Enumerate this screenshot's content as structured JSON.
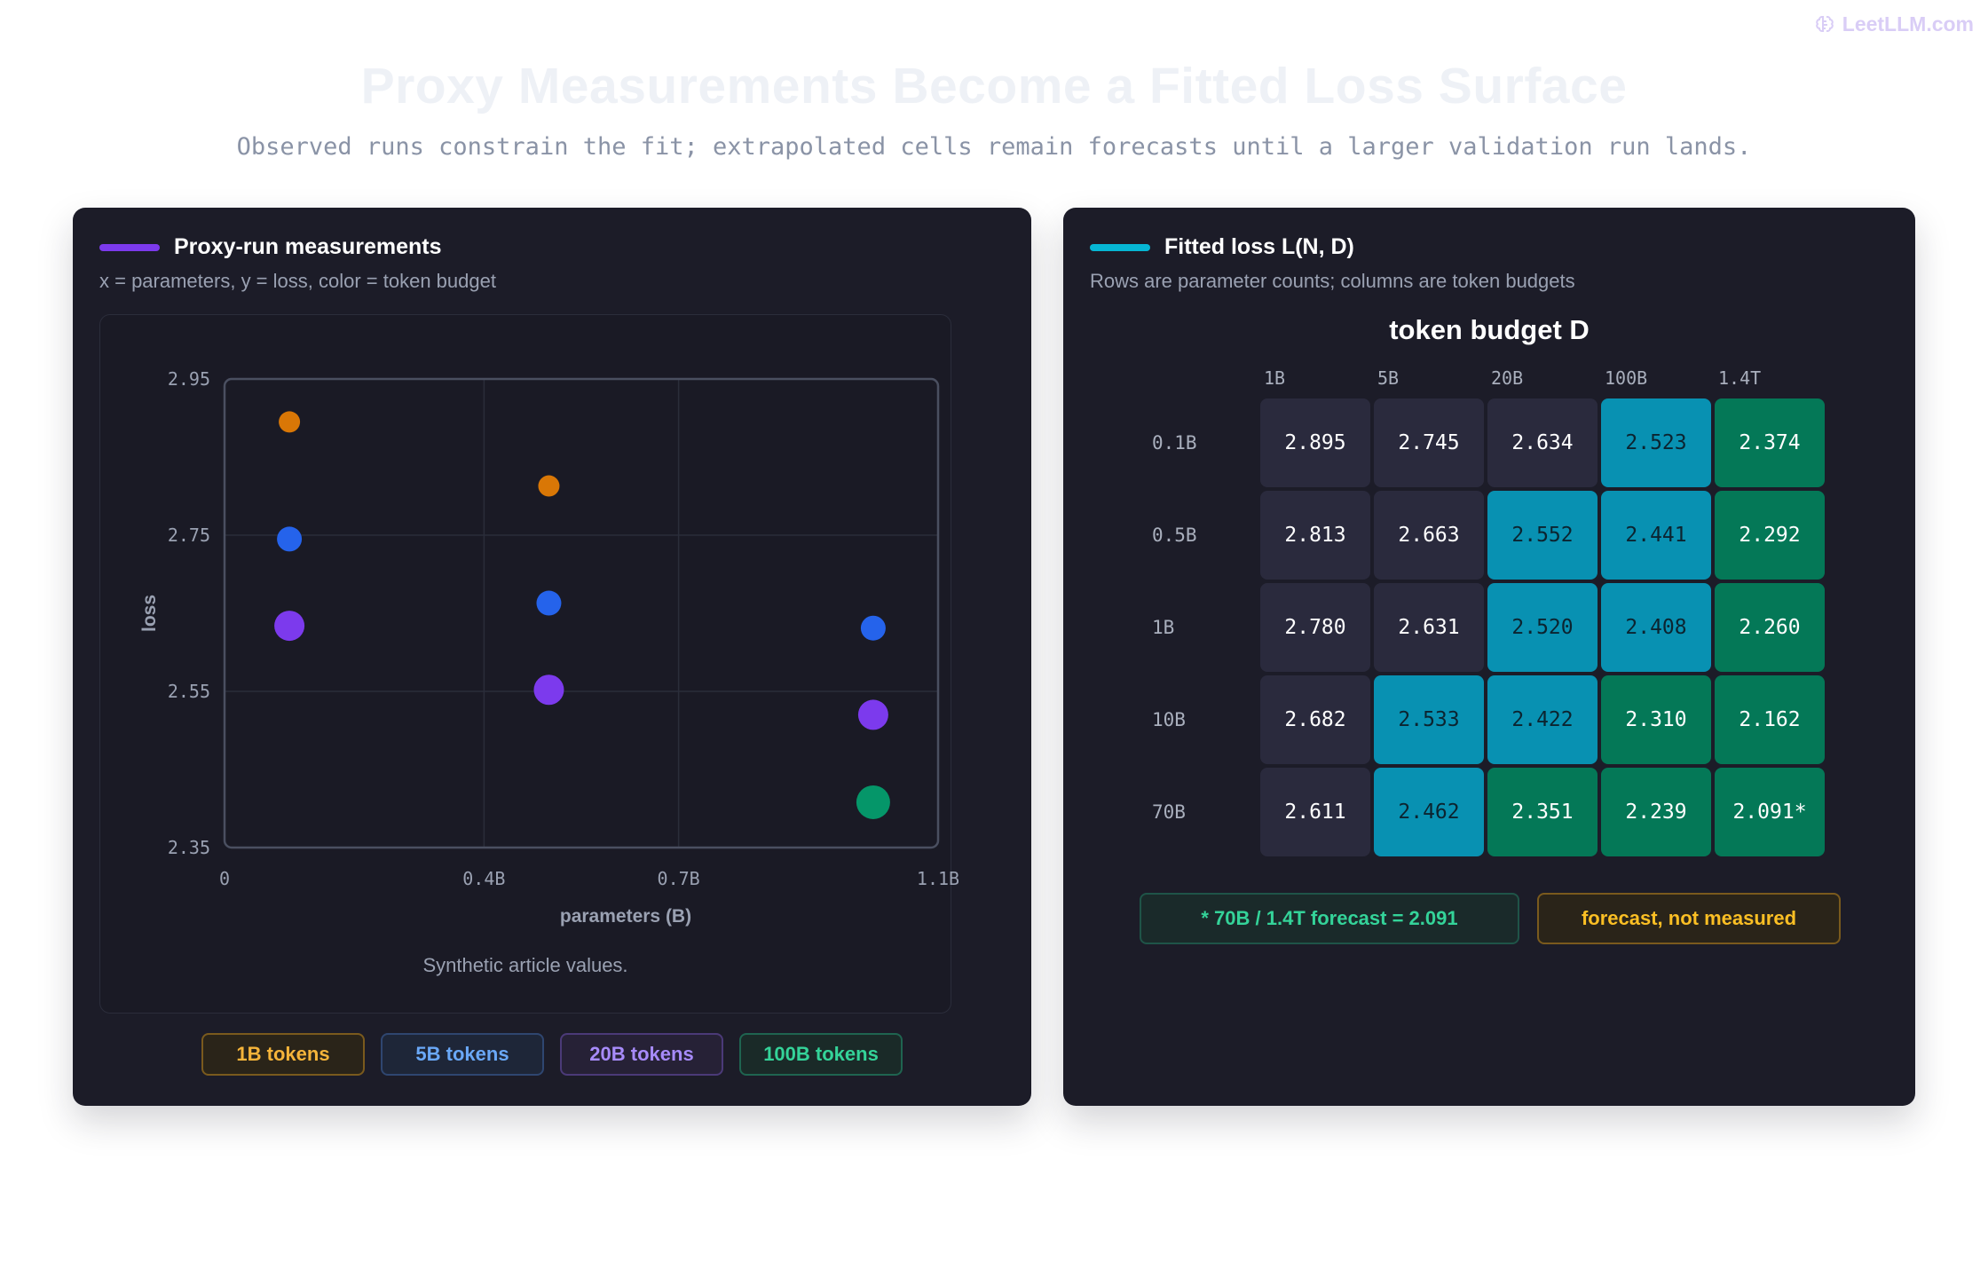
{
  "brand": {
    "label": "LeetLLM.com",
    "icon": "brain-icon"
  },
  "header": {
    "title": "Proxy Measurements Become a Fitted Loss Surface",
    "subtitle": "Observed runs constrain the fit; extrapolated cells remain forecasts until a larger validation run lands."
  },
  "left_panel": {
    "title": "Proxy-run measurements",
    "subtitle": "x = parameters, y = loss, color = token budget",
    "caption": "Synthetic article values.",
    "accent": "#7c3aed",
    "legend": [
      {
        "label": "1B tokens",
        "color": "#d97706",
        "text": "#f5b43a",
        "bg": "#2a2419",
        "border": "#7a5a1d"
      },
      {
        "label": "5B tokens",
        "color": "#2563eb",
        "text": "#6aa8f7",
        "bg": "#1e2638",
        "border": "#2f4670"
      },
      {
        "label": "20B tokens",
        "color": "#7c3aed",
        "text": "#a78bfa",
        "bg": "#262136",
        "border": "#4b3a78"
      },
      {
        "label": "100B tokens",
        "color": "#059669",
        "text": "#34d399",
        "bg": "#1a2a28",
        "border": "#1f6450"
      }
    ]
  },
  "chart_data": [
    {
      "type": "scatter",
      "title": "Proxy-run measurements",
      "xlabel": "parameters (B)",
      "ylabel": "loss",
      "xlim": [
        0,
        1.1
      ],
      "ylim": [
        2.35,
        2.95
      ],
      "xticks": [
        0,
        0.4,
        0.7,
        1.1
      ],
      "xtick_labels": [
        "0",
        "0.4B",
        "0.7B",
        "1.1B"
      ],
      "yticks": [
        2.95,
        2.75,
        2.55,
        2.35
      ],
      "ytick_labels": [
        "2.95",
        "2.75",
        "2.55",
        "2.35"
      ],
      "grid": true,
      "series": [
        {
          "name": "1B tokens",
          "color": "#d97706",
          "points": [
            {
              "x": 0.1,
              "y": 2.895
            },
            {
              "x": 0.5,
              "y": 2.813
            }
          ]
        },
        {
          "name": "5B tokens",
          "color": "#2563eb",
          "points": [
            {
              "x": 0.1,
              "y": 2.745
            },
            {
              "x": 0.5,
              "y": 2.663
            },
            {
              "x": 1.0,
              "y": 2.631
            }
          ]
        },
        {
          "name": "20B tokens",
          "color": "#7c3aed",
          "points": [
            {
              "x": 0.1,
              "y": 2.634
            },
            {
              "x": 0.5,
              "y": 2.552
            },
            {
              "x": 1.0,
              "y": 2.52
            }
          ]
        },
        {
          "name": "100B tokens",
          "color": "#059669",
          "points": [
            {
              "x": 1.0,
              "y": 2.408
            }
          ]
        }
      ]
    },
    {
      "type": "heatmap",
      "title": "Fitted loss L(N, D)",
      "subtitle": "Rows are parameter counts; columns are token budgets",
      "col_axis_title": "token budget D",
      "columns": [
        "1B",
        "5B",
        "20B",
        "100B",
        "1.4T"
      ],
      "rows": [
        "0.1B",
        "0.5B",
        "1B",
        "10B",
        "70B"
      ],
      "values": [
        [
          2.895,
          2.745,
          2.634,
          2.523,
          2.374
        ],
        [
          2.813,
          2.663,
          2.552,
          2.441,
          2.292
        ],
        [
          2.78,
          2.631,
          2.52,
          2.408,
          2.26
        ],
        [
          2.682,
          2.533,
          2.422,
          2.31,
          2.162
        ],
        [
          2.611,
          2.462,
          2.351,
          2.239,
          2.091
        ]
      ],
      "cell_labels": [
        [
          "2.895",
          "2.745",
          "2.634",
          "2.523",
          "2.374"
        ],
        [
          "2.813",
          "2.663",
          "2.552",
          "2.441",
          "2.292"
        ],
        [
          "2.780",
          "2.631",
          "2.520",
          "2.408",
          "2.260"
        ],
        [
          "2.682",
          "2.533",
          "2.422",
          "2.310",
          "2.162"
        ],
        [
          "2.611",
          "2.462",
          "2.351",
          "2.239",
          "2.091*"
        ]
      ],
      "color_bands": [
        {
          "min": 2.6,
          "color": "#2a2a3d",
          "text": "#ffffff"
        },
        {
          "min": 2.4,
          "color": "#0891b2",
          "text": "#0c2430"
        },
        {
          "min": 0,
          "color": "#047857",
          "text": "#ffffff"
        }
      ]
    }
  ],
  "right_panel": {
    "title": "Fitted loss L(N, D)",
    "subtitle": "Rows are parameter counts; columns are token budgets",
    "heat_title": "token budget D",
    "accent": "#06b6d4",
    "notes": [
      {
        "label": "* 70B / 1.4T forecast = 2.091",
        "text": "#34d399",
        "bg": "#1a2a2a",
        "border": "#1f5448"
      },
      {
        "label": "forecast, not measured",
        "text": "#fbbf24",
        "bg": "#2a2419",
        "border": "#7a5a1d"
      }
    ]
  }
}
